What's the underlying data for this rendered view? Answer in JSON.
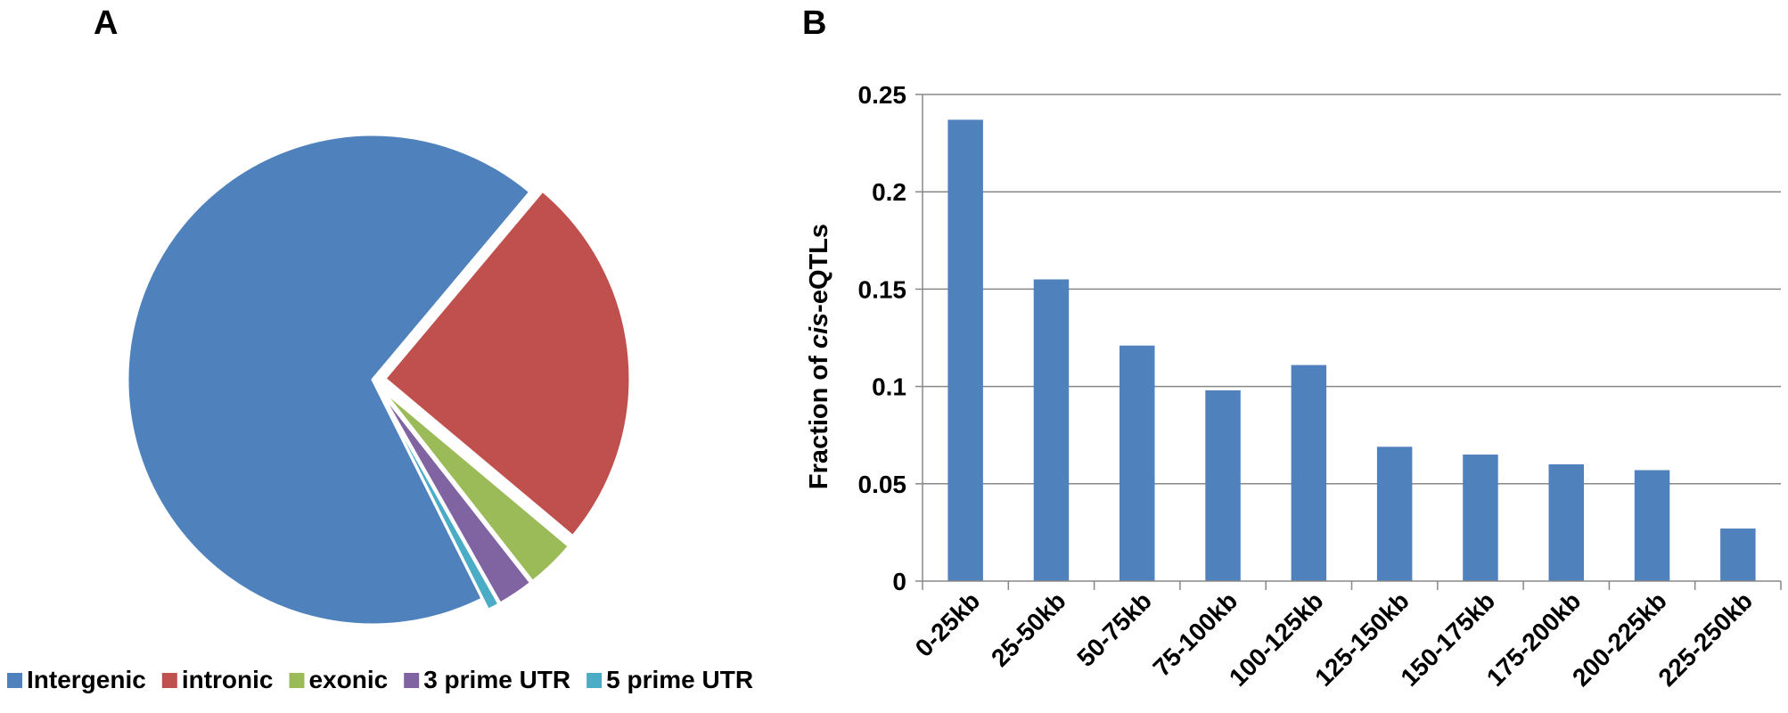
{
  "panels": {
    "a_label": "A",
    "b_label": "B"
  },
  "chart_data": [
    {
      "type": "pie",
      "exploded": true,
      "legend_position": "bottom",
      "slices": [
        {
          "label": "Intergenic",
          "value": 68.5,
          "color": "#4F81BD"
        },
        {
          "label": "intronic",
          "value": 25.0,
          "color": "#C0504D"
        },
        {
          "label": "exonic",
          "value": 3.3,
          "color": "#9BBB59"
        },
        {
          "label": "3 prime UTR",
          "value": 2.4,
          "color": "#8064A2"
        },
        {
          "label": "5 prime UTR",
          "value": 0.8,
          "color": "#4BACC6"
        }
      ]
    },
    {
      "type": "bar",
      "categories": [
        "0-25kb",
        "25-50kb",
        "50-75kb",
        "75-100kb",
        "100-125kb",
        "125-150kb",
        "150-175kb",
        "175-200kb",
        "200-225kb",
        "225-250kb"
      ],
      "values": [
        0.237,
        0.155,
        0.121,
        0.098,
        0.111,
        0.069,
        0.065,
        0.06,
        0.057,
        0.027
      ],
      "ylabel_prefix": "Fraction of ",
      "ylabel_italic": "cis",
      "ylabel_suffix": "-eQTLs",
      "ylim": [
        0,
        0.25
      ],
      "yticks": [
        "0",
        "0.05",
        "0.1",
        "0.15",
        "0.2",
        "0.25"
      ],
      "grid": true,
      "bar_color": "#4F81BD"
    }
  ]
}
